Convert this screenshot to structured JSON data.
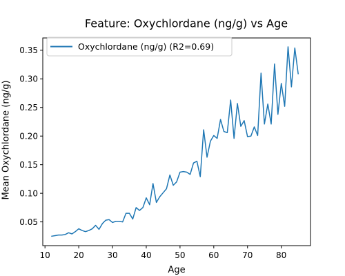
{
  "chart_data": {
    "type": "line",
    "title": "Feature: Oxychlordane (ng/g) vs Age",
    "xlabel": "Age",
    "ylabel": "Mean Oxychlordane (ng/g)",
    "xlim": [
      9.35,
      88.65
    ],
    "ylim": [
      0.0085,
      0.3715
    ],
    "xticks": [
      10,
      20,
      30,
      40,
      50,
      60,
      70,
      80
    ],
    "yticks": [
      0.05,
      0.1,
      0.15,
      0.2,
      0.25,
      0.3,
      0.35
    ],
    "ytick_labels": [
      "0.05",
      "0.10",
      "0.15",
      "0.20",
      "0.25",
      "0.30",
      "0.35"
    ],
    "legend_position": "upper left",
    "grid": false,
    "series": [
      {
        "name": "Oxychlordane (ng/g) (R2=0.69)",
        "color": "#1f77b4",
        "x": [
          12,
          13,
          14,
          15,
          16,
          17,
          18,
          19,
          20,
          21,
          22,
          23,
          24,
          25,
          26,
          27,
          28,
          29,
          30,
          31,
          32,
          33,
          34,
          35,
          36,
          37,
          38,
          39,
          40,
          41,
          42,
          43,
          44,
          45,
          46,
          47,
          48,
          49,
          50,
          51,
          52,
          53,
          54,
          55,
          56,
          57,
          58,
          59,
          60,
          61,
          62,
          63,
          64,
          65,
          66,
          67,
          68,
          69,
          70,
          71,
          72,
          73,
          74,
          75,
          76,
          77,
          78,
          79,
          80,
          81,
          82,
          83,
          84,
          85
        ],
        "y": [
          0.025,
          0.026,
          0.027,
          0.027,
          0.028,
          0.031,
          0.029,
          0.033,
          0.038,
          0.035,
          0.033,
          0.035,
          0.038,
          0.044,
          0.037,
          0.047,
          0.053,
          0.054,
          0.049,
          0.051,
          0.051,
          0.05,
          0.065,
          0.065,
          0.055,
          0.075,
          0.07,
          0.075,
          0.092,
          0.08,
          0.117,
          0.084,
          0.094,
          0.101,
          0.108,
          0.132,
          0.114,
          0.12,
          0.137,
          0.138,
          0.137,
          0.133,
          0.153,
          0.156,
          0.129,
          0.211,
          0.163,
          0.191,
          0.201,
          0.196,
          0.229,
          0.208,
          0.206,
          0.263,
          0.196,
          0.257,
          0.217,
          0.227,
          0.199,
          0.2,
          0.216,
          0.201,
          0.31,
          0.221,
          0.256,
          0.221,
          0.326,
          0.238,
          0.292,
          0.252,
          0.356,
          0.286,
          0.354,
          0.309
        ]
      }
    ]
  }
}
